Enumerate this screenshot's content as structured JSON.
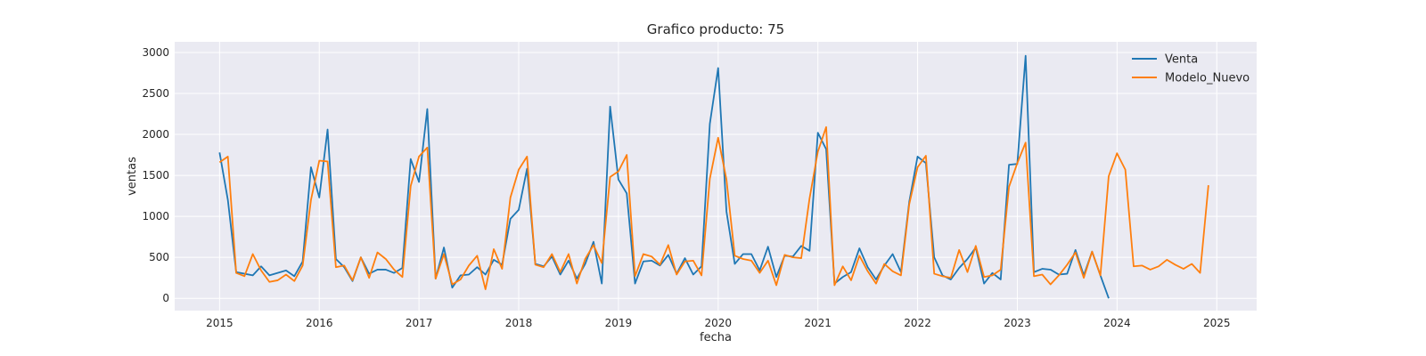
{
  "chart_data": {
    "type": "line",
    "title": "Grafico producto: 75",
    "xlabel": "fecha",
    "ylabel": "ventas",
    "xlim": [
      2014.55,
      2025.4
    ],
    "ylim": [
      -150,
      3130
    ],
    "xticks": [
      2015,
      2016,
      2017,
      2018,
      2019,
      2020,
      2021,
      2022,
      2023,
      2024,
      2025
    ],
    "xtick_labels": [
      "2015",
      "2016",
      "2017",
      "2018",
      "2019",
      "2020",
      "2021",
      "2022",
      "2023",
      "2024",
      "2025"
    ],
    "yticks": [
      0,
      500,
      1000,
      1500,
      2000,
      2500,
      3000
    ],
    "ytick_labels": [
      "0",
      "500",
      "1000",
      "1500",
      "2000",
      "2500",
      "3000"
    ],
    "grid": true,
    "background": "#EAEAF2",
    "legend_position": "top-right",
    "x_start": 2015.0,
    "x_step": 0.08333,
    "series": [
      {
        "name": "Venta",
        "color": "#1f77b4",
        "values": [
          1780,
          1200,
          320,
          300,
          280,
          390,
          280,
          310,
          340,
          270,
          450,
          1600,
          1230,
          2060,
          480,
          380,
          210,
          500,
          300,
          350,
          350,
          310,
          370,
          1700,
          1420,
          2310,
          240,
          620,
          130,
          280,
          290,
          380,
          290,
          470,
          410,
          970,
          1080,
          1580,
          420,
          390,
          510,
          290,
          460,
          240,
          420,
          690,
          180,
          2340,
          1450,
          1280,
          180,
          450,
          460,
          400,
          530,
          300,
          490,
          290,
          390,
          2130,
          2810,
          1060,
          420,
          540,
          540,
          340,
          630,
          260,
          520,
          510,
          640,
          580,
          2020,
          1820,
          180,
          260,
          320,
          610,
          380,
          230,
          400,
          540,
          320,
          1180,
          1730,
          1650,
          500,
          280,
          230,
          370,
          480,
          620,
          180,
          310,
          230,
          1630,
          1640,
          2960,
          320,
          360,
          350,
          290,
          300,
          590,
          280,
          570,
          280,
          0
        ]
      },
      {
        "name": "Modelo_Nuevo",
        "color": "#ff7f0e",
        "values": [
          1660,
          1730,
          310,
          270,
          540,
          340,
          200,
          220,
          290,
          210,
          400,
          1200,
          1680,
          1670,
          380,
          400,
          220,
          500,
          250,
          560,
          480,
          350,
          260,
          1370,
          1730,
          1840,
          240,
          540,
          170,
          230,
          400,
          520,
          110,
          600,
          360,
          1230,
          1570,
          1730,
          410,
          380,
          540,
          320,
          540,
          180,
          480,
          650,
          430,
          1480,
          1550,
          1750,
          270,
          540,
          510,
          410,
          650,
          290,
          450,
          460,
          280,
          1460,
          1960,
          1450,
          520,
          480,
          460,
          310,
          460,
          160,
          530,
          500,
          490,
          1220,
          1790,
          2090,
          160,
          390,
          220,
          520,
          330,
          180,
          420,
          330,
          280,
          1150,
          1600,
          1740,
          300,
          270,
          250,
          590,
          320,
          640,
          260,
          280,
          350,
          1360,
          1650,
          1900,
          270,
          290,
          170,
          280,
          410,
          560,
          250,
          570,
          280,
          1490,
          1770,
          1570,
          390,
          400,
          350,
          390,
          470,
          410,
          360,
          420,
          310,
          1380
        ]
      }
    ]
  }
}
